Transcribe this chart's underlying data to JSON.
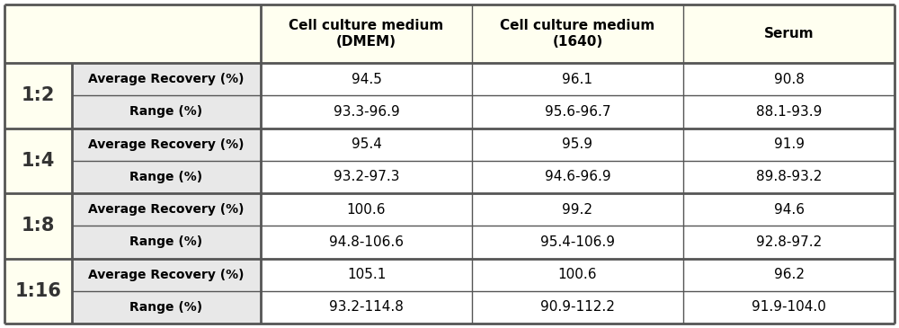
{
  "header_labels": [
    "Cell culture medium\n(DMEM)",
    "Cell culture medium\n(1640)",
    "Serum"
  ],
  "groups": [
    {
      "label": "1:2",
      "avg_dmem": "94.5",
      "avg_1640": "96.1",
      "avg_serum": "90.8",
      "rng_dmem": "93.3-96.9",
      "rng_1640": "95.6-96.7",
      "rng_serum": "88.1-93.9"
    },
    {
      "label": "1:4",
      "avg_dmem": "95.4",
      "avg_1640": "95.9",
      "avg_serum": "91.9",
      "rng_dmem": "93.2-97.3",
      "rng_1640": "94.6-96.9",
      "rng_serum": "89.8-93.2"
    },
    {
      "label": "1:8",
      "avg_dmem": "100.6",
      "avg_1640": "99.2",
      "avg_serum": "94.6",
      "rng_dmem": "94.8-106.6",
      "rng_1640": "95.4-106.9",
      "rng_serum": "92.8-97.2"
    },
    {
      "label": "1:16",
      "avg_dmem": "105.1",
      "avg_1640": "100.6",
      "avg_serum": "96.2",
      "rng_dmem": "93.2-114.8",
      "rng_1640": "90.9-112.2",
      "rng_serum": "91.9-104.0"
    }
  ],
  "metric_labels": [
    "Average Recovery (%)",
    "Range (%)"
  ],
  "header_bg": "#fffff0",
  "label_bg": "#f0f0f0",
  "metric_bg": "#e8e8e8",
  "value_bg": "#ffffff",
  "border_color": "#555555",
  "text_color": "#000000",
  "figsize": [
    10.0,
    3.65
  ],
  "dpi": 100
}
